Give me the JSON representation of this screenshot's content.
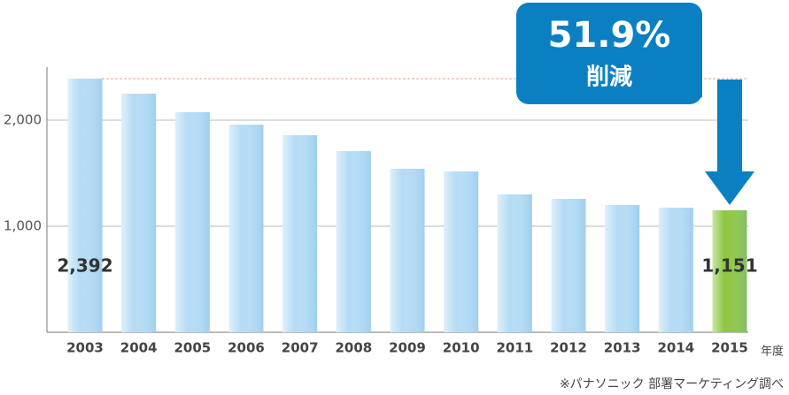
{
  "chart_data": {
    "type": "bar",
    "categories": [
      "2003",
      "2004",
      "2005",
      "2006",
      "2007",
      "2008",
      "2009",
      "2010",
      "2011",
      "2012",
      "2013",
      "2014",
      "2015"
    ],
    "values": [
      2392,
      2250,
      2075,
      1958,
      1858,
      1708,
      1542,
      1517,
      1300,
      1258,
      1200,
      1175,
      1151
    ],
    "value_labels": [
      "2,392",
      null,
      null,
      null,
      null,
      null,
      null,
      null,
      null,
      null,
      null,
      null,
      "1,151"
    ],
    "colors": [
      "#b5dcf5",
      "#b5dcf5",
      "#b5dcf5",
      "#b5dcf5",
      "#b5dcf5",
      "#b5dcf5",
      "#b5dcf5",
      "#b5dcf5",
      "#b5dcf5",
      "#b5dcf5",
      "#b5dcf5",
      "#b5dcf5",
      "#8dc63f"
    ],
    "ylim": [
      0,
      2500
    ],
    "yticks": [
      {
        "value": 1000,
        "label": "1,000"
      },
      {
        "value": 2000,
        "label": "2,000"
      }
    ],
    "grid": true,
    "x_unit": "年度",
    "annotation": {
      "value": "51.9%",
      "text": "削減"
    },
    "footnote": "※パナソニック 部署マーケティング調べ"
  }
}
